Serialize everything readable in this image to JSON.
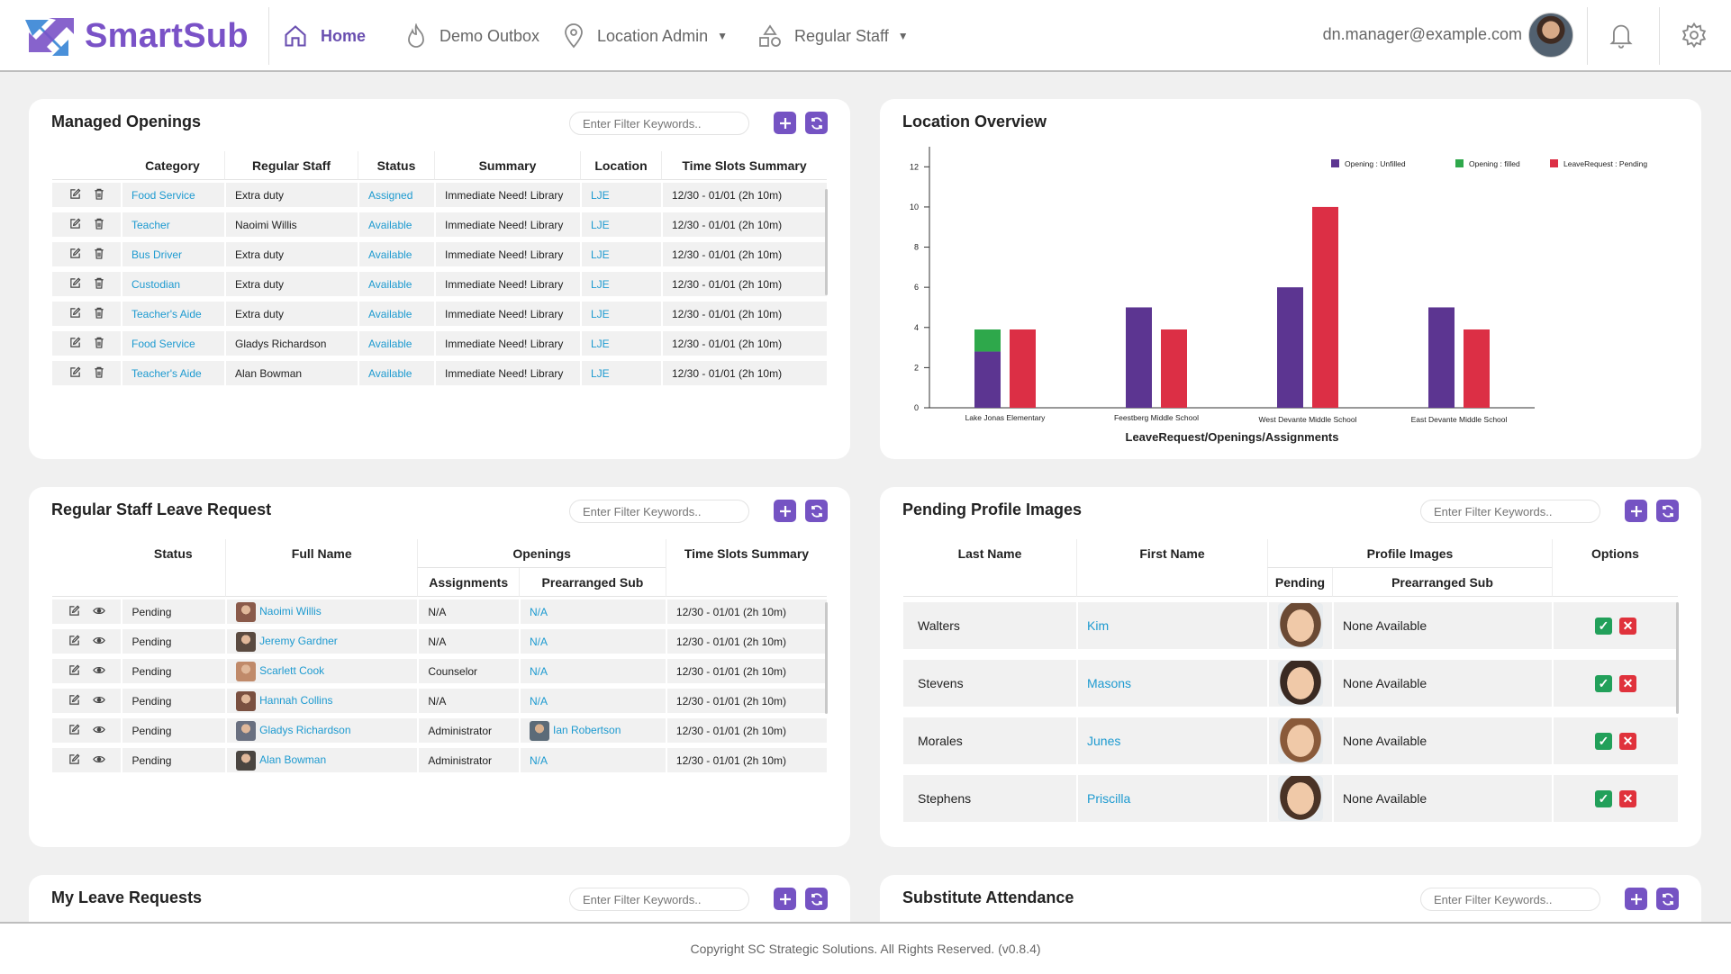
{
  "brand": {
    "name": "SmartSub"
  },
  "nav": {
    "home": "Home",
    "demo_outbox": "Demo Outbox",
    "location_admin": "Location Admin",
    "regular_staff": "Regular Staff"
  },
  "user": {
    "email": "dn.manager@example.com"
  },
  "filter_placeholder": "Enter Filter Keywords..",
  "managed_openings": {
    "title": "Managed Openings",
    "columns": [
      "Category",
      "Regular Staff",
      "Status",
      "Summary",
      "Location",
      "Time Slots Summary"
    ],
    "rows": [
      {
        "category": "Food Service",
        "staff": "Extra duty",
        "status": "Assigned",
        "summary": "Immediate Need! Library",
        "location": "LJE",
        "time": "12/30 - 01/01 (2h 10m)"
      },
      {
        "category": "Teacher",
        "staff": "Naoimi Willis",
        "status": "Available",
        "summary": "Immediate Need! Library",
        "location": "LJE",
        "time": "12/30 - 01/01 (2h 10m)"
      },
      {
        "category": "Bus Driver",
        "staff": "Extra duty",
        "status": "Available",
        "summary": "Immediate Need! Library",
        "location": "LJE",
        "time": "12/30 - 01/01 (2h 10m)"
      },
      {
        "category": "Custodian",
        "staff": "Extra duty",
        "status": "Available",
        "summary": "Immediate Need! Library",
        "location": "LJE",
        "time": "12/30 - 01/01 (2h 10m)"
      },
      {
        "category": "Teacher's Aide",
        "staff": "Extra duty",
        "status": "Available",
        "summary": "Immediate Need! Library",
        "location": "LJE",
        "time": "12/30 - 01/01 (2h 10m)"
      },
      {
        "category": "Food Service",
        "staff": "Gladys Richardson",
        "status": "Available",
        "summary": "Immediate Need! Library",
        "location": "LJE",
        "time": "12/30 - 01/01 (2h 10m)"
      },
      {
        "category": "Teacher's Aide",
        "staff": "Alan Bowman",
        "status": "Available",
        "summary": "Immediate Need! Library",
        "location": "LJE",
        "time": "12/30 - 01/01 (2h 10m)"
      }
    ]
  },
  "location_overview": {
    "title": "Location Overview"
  },
  "chart_data": {
    "type": "bar",
    "title": "",
    "xlabel": "LeaveRequest/Openings/Assignments",
    "ylabel": "",
    "ylim": [
      0,
      13
    ],
    "yticks": [
      0,
      2,
      4,
      6,
      8,
      10,
      12
    ],
    "grid": false,
    "legend_position": "top-right",
    "categories": [
      "Lake Jonas Elementary",
      "Feestberg Middle School",
      "West Devante Middle School",
      "East Devante Middle School"
    ],
    "series": [
      {
        "name": "Opening : Unfilled",
        "color": "#5c3591",
        "values": [
          2.8,
          5,
          6,
          5
        ]
      },
      {
        "name": "Opening : filled",
        "color": "#2ea84b",
        "values": [
          1.1,
          0,
          0,
          0
        ]
      },
      {
        "name": "LeaveRequest : Pending",
        "color": "#dc2f45",
        "values": [
          3.9,
          3.9,
          10,
          3.9
        ]
      }
    ],
    "stack": [
      [
        "Opening : Unfilled",
        "Opening : filled"
      ],
      [
        "LeaveRequest : Pending"
      ]
    ]
  },
  "leave_request": {
    "title": "Regular Staff Leave Request",
    "columns": {
      "status": "Status",
      "full_name": "Full Name",
      "openings": "Openings",
      "assignments": "Assignments",
      "prearranged": "Prearranged Sub",
      "time": "Time Slots Summary"
    },
    "rows": [
      {
        "status": "Pending",
        "name": "Naoimi Willis",
        "assignments": "N/A",
        "sub": "N/A",
        "time": "12/30 - 01/01 (2h 10m)"
      },
      {
        "status": "Pending",
        "name": "Jeremy Gardner",
        "assignments": "N/A",
        "sub": "N/A",
        "time": "12/30 - 01/01 (2h 10m)"
      },
      {
        "status": "Pending",
        "name": "Scarlett Cook",
        "assignments": "Counselor",
        "sub": "N/A",
        "time": "12/30 - 01/01 (2h 10m)"
      },
      {
        "status": "Pending",
        "name": "Hannah Collins",
        "assignments": "N/A",
        "sub": "N/A",
        "time": "12/30 - 01/01 (2h 10m)"
      },
      {
        "status": "Pending",
        "name": "Gladys Richardson",
        "assignments": "Administrator",
        "sub": "Ian Robertson",
        "time": "12/30 - 01/01 (2h 10m)"
      },
      {
        "status": "Pending",
        "name": "Alan Bowman",
        "assignments": "Administrator",
        "sub": "N/A",
        "time": "12/30 - 01/01 (2h 10m)"
      }
    ]
  },
  "pending_images": {
    "title": "Pending Profile Images",
    "columns": {
      "last": "Last Name",
      "first": "First Name",
      "profile": "Profile Images",
      "pending": "Pending",
      "prearranged": "Prearranged Sub",
      "options": "Options"
    },
    "rows": [
      {
        "last": "Walters",
        "first": "Kim",
        "sub": "None Available"
      },
      {
        "last": "Stevens",
        "first": "Masons",
        "sub": "None Available"
      },
      {
        "last": "Morales",
        "first": "Junes",
        "sub": "None Available"
      },
      {
        "last": "Stephens",
        "first": "Priscilla",
        "sub": "None Available"
      }
    ]
  },
  "my_leave": {
    "title": "My Leave Requests"
  },
  "attendance": {
    "title": "Substitute Attendance"
  },
  "footer": {
    "text": "Copyright SC Strategic Solutions. All Rights Reserved. (v0.8.4)"
  },
  "colors": {
    "accent": "#7553c3",
    "link": "#1d9ad0",
    "approve": "#22a05a",
    "reject": "#e0323c"
  }
}
